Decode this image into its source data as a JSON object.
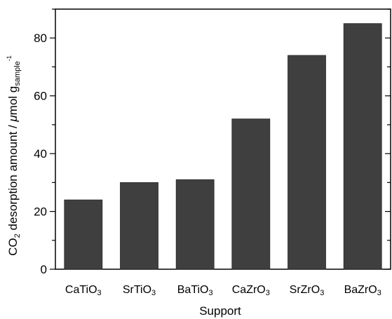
{
  "chart_data": {
    "type": "bar",
    "categories": [
      {
        "main": "CaTiO",
        "sub": "3"
      },
      {
        "main": "SrTiO",
        "sub": "3"
      },
      {
        "main": "BaTiO",
        "sub": "3"
      },
      {
        "main": "CaZrO",
        "sub": "3"
      },
      {
        "main": "SrZrO",
        "sub": "3"
      },
      {
        "main": "BaZrO",
        "sub": "3"
      }
    ],
    "values": [
      24,
      30,
      31,
      52,
      74,
      85
    ],
    "title": "",
    "xlabel": "Support",
    "ylabel": {
      "pre": "CO",
      "pre_sub": "2",
      "mid": " desorption amount  /  ",
      "mu": "μ",
      "unit": "mol g",
      "unit_sub": "sample",
      "unit_sup": "-1"
    },
    "ylim": [
      0,
      90
    ],
    "yticks": [
      0,
      20,
      40,
      60,
      80
    ],
    "y_minor_step": 10,
    "grid": false,
    "legend": "none",
    "bar_color": "#3f3f3f"
  }
}
